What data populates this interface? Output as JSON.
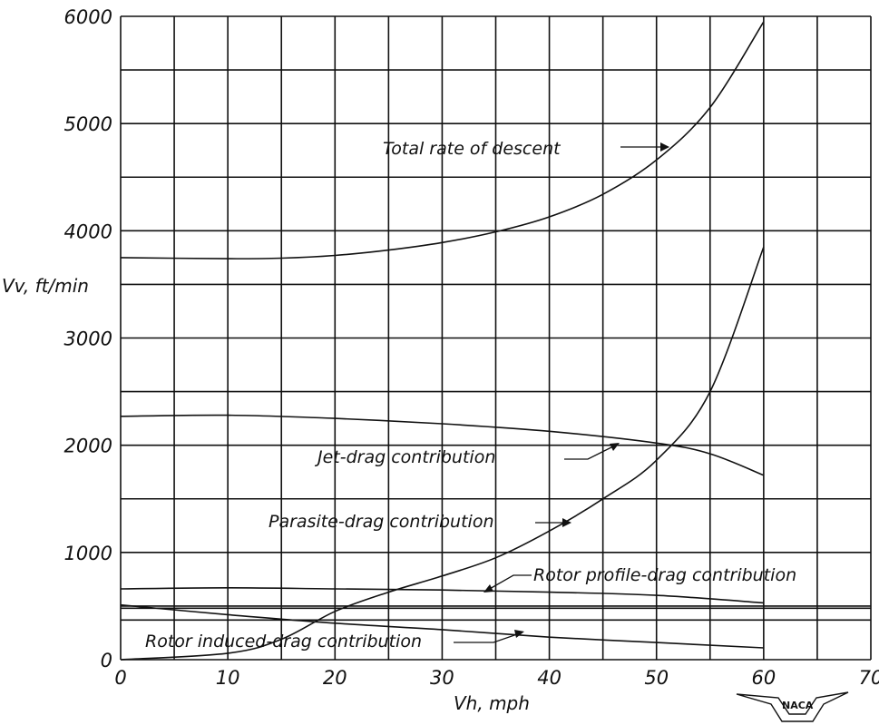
{
  "chart_data": {
    "type": "line",
    "title": "",
    "xlabel": "Vh, mph",
    "ylabel": "Vv, ft/min",
    "xlim": [
      0,
      70
    ],
    "ylim": [
      0,
      6000
    ],
    "x_ticks": [
      "0",
      "10",
      "20",
      "30",
      "40",
      "50",
      "60",
      "70"
    ],
    "y_ticks": [
      "0",
      "1000",
      "2000",
      "3000",
      "4000",
      "5000",
      "6000"
    ],
    "grid": true,
    "series": [
      {
        "name": "Total rate of descent",
        "x": [
          0,
          10,
          15,
          20,
          25,
          30,
          35,
          40,
          45,
          50,
          55,
          60
        ],
        "y": [
          3750,
          3740,
          3745,
          3770,
          3820,
          3890,
          3990,
          4130,
          4340,
          4660,
          5150,
          5950
        ]
      },
      {
        "name": "Jet-drag contribution",
        "x": [
          0,
          10,
          20,
          30,
          40,
          50,
          55,
          60
        ],
        "y": [
          2270,
          2280,
          2250,
          2200,
          2130,
          2020,
          1920,
          1720
        ]
      },
      {
        "name": "Parasite-drag contribution",
        "x": [
          0,
          10,
          15,
          20,
          25,
          30,
          35,
          40,
          45,
          50,
          55,
          60
        ],
        "y": [
          0,
          60,
          190,
          450,
          630,
          780,
          950,
          1200,
          1500,
          1860,
          2500,
          3850
        ]
      },
      {
        "name": "Rotor profile-drag contribution",
        "x": [
          0,
          10,
          20,
          30,
          40,
          50,
          60
        ],
        "y": [
          660,
          670,
          660,
          650,
          630,
          600,
          530
        ]
      },
      {
        "name": "Rotor induced-drag contribution",
        "x": [
          0,
          10,
          20,
          30,
          40,
          50,
          60
        ],
        "y": [
          510,
          420,
          340,
          280,
          210,
          160,
          110
        ]
      }
    ],
    "extra_lines_y": [
      370,
      480
    ],
    "logo_text": "NACA"
  }
}
